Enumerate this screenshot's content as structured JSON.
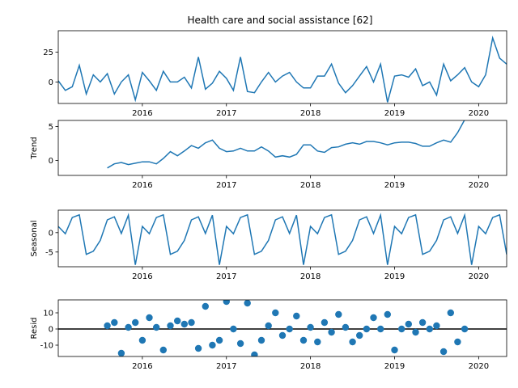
{
  "chart_data": {
    "type": "line",
    "title": "Health care and social assistance  [62]",
    "x_start": "2015-01",
    "x_labels": [
      "2016",
      "2017",
      "2018",
      "2019",
      "2020"
    ],
    "xlim": [
      "2015-01",
      "2020-05"
    ],
    "color": "#1f77b4",
    "panels": [
      {
        "name": "observed",
        "ylabel": "",
        "kind": "line",
        "ylim": [
          -18,
          43
        ],
        "yticks": [
          0,
          25
        ],
        "values": [
          1,
          -7,
          -4,
          14,
          -10,
          6,
          0,
          7,
          -10,
          0,
          6,
          -15,
          8,
          1,
          -7,
          9,
          0,
          0,
          4,
          -5,
          21,
          -6,
          -1,
          9,
          3,
          -7,
          21,
          -8,
          -9,
          0,
          8,
          0,
          5,
          8,
          0,
          -5,
          -5,
          5,
          5,
          15,
          -1,
          -9,
          -3,
          5,
          13,
          0,
          15,
          -17,
          5,
          6,
          4,
          11,
          -3,
          0,
          -11,
          15,
          1,
          6,
          12,
          0,
          -4,
          6,
          37,
          20,
          15
        ],
        "zero_line": false
      },
      {
        "name": "trend",
        "ylabel": "Trend",
        "kind": "line",
        "ylim": [
          -2.2,
          5.9
        ],
        "yticks": [
          0,
          5
        ],
        "values": [
          null,
          null,
          null,
          null,
          null,
          null,
          null,
          -1.1,
          -0.5,
          -0.3,
          -0.6,
          -0.4,
          -0.2,
          -0.2,
          -0.5,
          0.3,
          1.3,
          0.7,
          1.4,
          2.2,
          1.8,
          2.6,
          3.0,
          1.8,
          1.3,
          1.4,
          1.8,
          1.4,
          1.4,
          2.0,
          1.4,
          0.5,
          0.7,
          0.5,
          0.9,
          2.3,
          2.3,
          1.4,
          1.2,
          1.9,
          2.0,
          2.4,
          2.6,
          2.4,
          2.8,
          2.8,
          2.6,
          2.3,
          2.6,
          2.7,
          2.7,
          2.5,
          2.1,
          2.1,
          2.6,
          3.0,
          2.7,
          4.1,
          6.0,
          null,
          null,
          null,
          null,
          null,
          null
        ],
        "zero_line": false
      },
      {
        "name": "seasonal",
        "ylabel": "Seasonal",
        "kind": "line",
        "ylim": [
          -8.8,
          5.8
        ],
        "yticks": [
          -5,
          0
        ],
        "values": [
          1.6,
          -0.3,
          3.9,
          4.6,
          -5.6,
          -4.8,
          -2.0,
          3.3,
          4.1,
          -0.2,
          4.5,
          -8.3,
          1.6,
          -0.3,
          3.9,
          4.6,
          -5.6,
          -4.8,
          -2.0,
          3.3,
          4.1,
          -0.2,
          4.5,
          -8.3,
          1.6,
          -0.3,
          3.9,
          4.6,
          -5.6,
          -4.8,
          -2.0,
          3.3,
          4.1,
          -0.2,
          4.5,
          -8.3,
          1.6,
          -0.3,
          3.9,
          4.6,
          -5.6,
          -4.8,
          -2.0,
          3.3,
          4.1,
          -0.2,
          4.5,
          -8.3,
          1.6,
          -0.3,
          3.9,
          4.6,
          -5.6,
          -4.8,
          -2.0,
          3.3,
          4.1,
          -0.2,
          4.5,
          -8.3,
          1.6,
          -0.3,
          3.9,
          4.6,
          -5.6
        ],
        "zero_line": false
      },
      {
        "name": "resid",
        "ylabel": "Resid",
        "kind": "scatter",
        "ylim": [
          -17,
          18
        ],
        "yticks": [
          -10,
          0,
          10
        ],
        "values": [
          null,
          null,
          null,
          null,
          null,
          null,
          null,
          2,
          4,
          -15,
          1,
          4,
          -7,
          7,
          1,
          -13,
          2,
          5,
          3,
          4,
          -12,
          14,
          -10,
          -7,
          17,
          0,
          -9,
          16,
          -16,
          -7,
          2,
          10,
          -4,
          0,
          8,
          -7,
          1,
          -8,
          4,
          -2,
          9,
          1,
          -8,
          -4,
          0,
          7,
          0,
          9,
          -13,
          0,
          3,
          -2,
          4,
          0,
          2,
          -14,
          10,
          -8,
          0,
          null,
          null,
          null,
          null,
          null,
          null
        ],
        "zero_line": true
      }
    ]
  }
}
